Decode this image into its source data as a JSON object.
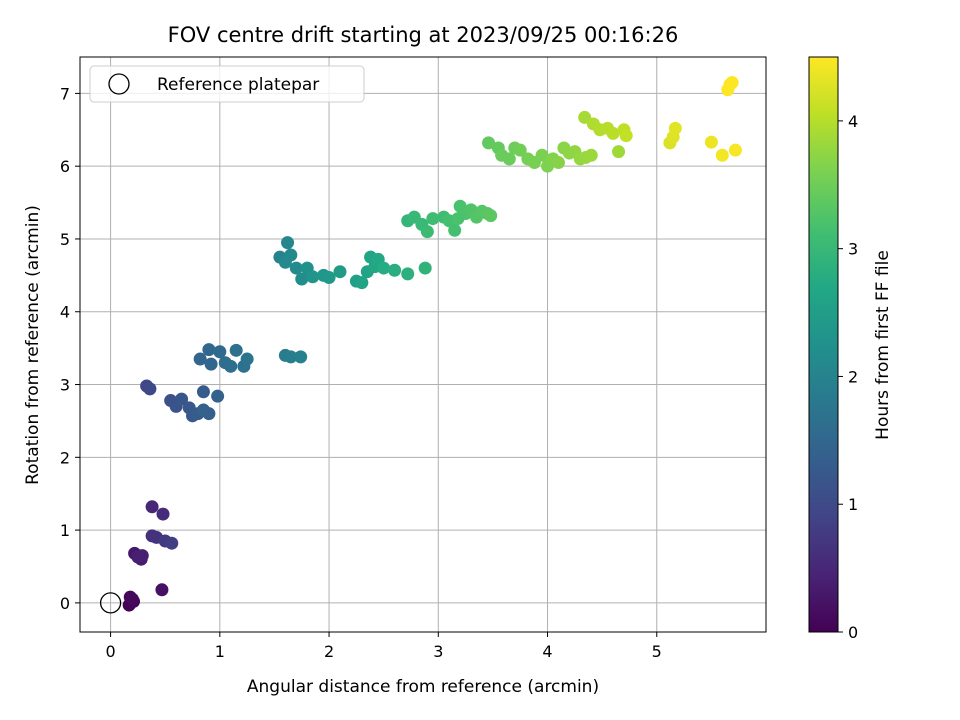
{
  "chart_data": {
    "type": "scatter",
    "title": "FOV centre drift starting at 2023/09/25 00:16:26",
    "xlabel": "Angular distance from reference (arcmin)",
    "ylabel": "Rotation from reference (arcmin)",
    "xlim": [
      -0.28,
      6.0
    ],
    "ylim": [
      -0.4,
      7.5
    ],
    "xticks": [
      0,
      1,
      2,
      3,
      4,
      5
    ],
    "yticks": [
      0,
      1,
      2,
      3,
      4,
      5,
      6,
      7
    ],
    "grid": true,
    "legend": {
      "placement": "upper-left",
      "entries": [
        "Reference platepar"
      ]
    },
    "reference_point": {
      "x": 0,
      "y": 0,
      "marker": "open-circle"
    },
    "colorbar": {
      "label": "Hours from first FF file",
      "colormap": "viridis",
      "range": [
        0,
        4.5
      ],
      "ticks": [
        0,
        1,
        2,
        3,
        4
      ]
    },
    "points": [
      {
        "x": 0.17,
        "y": -0.03,
        "c": 0.02
      },
      {
        "x": 0.21,
        "y": 0.02,
        "c": 0.05
      },
      {
        "x": 0.18,
        "y": 0.08,
        "c": 0.08
      },
      {
        "x": 0.2,
        "y": 0.05,
        "c": 0.1
      },
      {
        "x": 0.47,
        "y": 0.18,
        "c": 0.2
      },
      {
        "x": 0.22,
        "y": 0.68,
        "c": 0.3
      },
      {
        "x": 0.28,
        "y": 0.6,
        "c": 0.35
      },
      {
        "x": 0.29,
        "y": 0.65,
        "c": 0.38
      },
      {
        "x": 0.25,
        "y": 0.63,
        "c": 0.4
      },
      {
        "x": 0.38,
        "y": 1.32,
        "c": 0.5
      },
      {
        "x": 0.48,
        "y": 1.22,
        "c": 0.55
      },
      {
        "x": 0.38,
        "y": 0.92,
        "c": 0.6
      },
      {
        "x": 0.42,
        "y": 0.9,
        "c": 0.65
      },
      {
        "x": 0.5,
        "y": 0.85,
        "c": 0.75
      },
      {
        "x": 0.56,
        "y": 0.82,
        "c": 0.82
      },
      {
        "x": 0.33,
        "y": 2.98,
        "c": 0.95
      },
      {
        "x": 0.36,
        "y": 2.94,
        "c": 1.0
      },
      {
        "x": 0.55,
        "y": 2.78,
        "c": 1.1
      },
      {
        "x": 0.6,
        "y": 2.7,
        "c": 1.15
      },
      {
        "x": 0.65,
        "y": 2.8,
        "c": 1.2
      },
      {
        "x": 0.72,
        "y": 2.68,
        "c": 1.22
      },
      {
        "x": 0.75,
        "y": 2.57,
        "c": 1.25
      },
      {
        "x": 0.8,
        "y": 2.6,
        "c": 1.3
      },
      {
        "x": 0.85,
        "y": 2.9,
        "c": 1.3
      },
      {
        "x": 0.9,
        "y": 2.6,
        "c": 1.35
      },
      {
        "x": 0.98,
        "y": 2.84,
        "c": 1.4
      },
      {
        "x": 0.85,
        "y": 2.65,
        "c": 1.4
      },
      {
        "x": 0.82,
        "y": 3.35,
        "c": 1.45
      },
      {
        "x": 0.9,
        "y": 3.48,
        "c": 1.5
      },
      {
        "x": 1.0,
        "y": 3.45,
        "c": 1.55
      },
      {
        "x": 1.05,
        "y": 3.3,
        "c": 1.6
      },
      {
        "x": 1.1,
        "y": 3.25,
        "c": 1.62
      },
      {
        "x": 1.15,
        "y": 3.47,
        "c": 1.65
      },
      {
        "x": 1.22,
        "y": 3.25,
        "c": 1.7
      },
      {
        "x": 1.25,
        "y": 3.35,
        "c": 1.72
      },
      {
        "x": 0.92,
        "y": 3.28,
        "c": 1.5
      },
      {
        "x": 1.6,
        "y": 3.4,
        "c": 1.85
      },
      {
        "x": 1.65,
        "y": 3.38,
        "c": 1.9
      },
      {
        "x": 1.74,
        "y": 3.38,
        "c": 1.95
      },
      {
        "x": 1.55,
        "y": 4.75,
        "c": 2.0
      },
      {
        "x": 1.62,
        "y": 4.95,
        "c": 2.05
      },
      {
        "x": 1.65,
        "y": 4.78,
        "c": 2.1
      },
      {
        "x": 1.6,
        "y": 4.68,
        "c": 2.12
      },
      {
        "x": 1.7,
        "y": 4.6,
        "c": 2.15
      },
      {
        "x": 1.75,
        "y": 4.45,
        "c": 2.2
      },
      {
        "x": 1.8,
        "y": 4.6,
        "c": 2.25
      },
      {
        "x": 1.85,
        "y": 4.48,
        "c": 2.3
      },
      {
        "x": 1.95,
        "y": 4.5,
        "c": 2.35
      },
      {
        "x": 2.0,
        "y": 4.47,
        "c": 2.4
      },
      {
        "x": 2.1,
        "y": 4.55,
        "c": 2.45
      },
      {
        "x": 2.25,
        "y": 4.42,
        "c": 2.55
      },
      {
        "x": 2.3,
        "y": 4.4,
        "c": 2.58
      },
      {
        "x": 2.35,
        "y": 4.55,
        "c": 2.6
      },
      {
        "x": 2.38,
        "y": 4.75,
        "c": 2.65
      },
      {
        "x": 2.42,
        "y": 4.62,
        "c": 2.68
      },
      {
        "x": 2.45,
        "y": 4.72,
        "c": 2.7
      },
      {
        "x": 2.5,
        "y": 4.6,
        "c": 2.75
      },
      {
        "x": 2.6,
        "y": 4.57,
        "c": 2.8
      },
      {
        "x": 2.72,
        "y": 4.52,
        "c": 2.85
      },
      {
        "x": 2.88,
        "y": 4.6,
        "c": 2.9
      },
      {
        "x": 2.72,
        "y": 5.25,
        "c": 2.95
      },
      {
        "x": 2.78,
        "y": 5.3,
        "c": 3.0
      },
      {
        "x": 2.85,
        "y": 5.2,
        "c": 3.02
      },
      {
        "x": 2.9,
        "y": 5.1,
        "c": 3.05
      },
      {
        "x": 2.95,
        "y": 5.28,
        "c": 3.08
      },
      {
        "x": 3.05,
        "y": 5.3,
        "c": 3.1
      },
      {
        "x": 3.1,
        "y": 5.25,
        "c": 3.15
      },
      {
        "x": 3.15,
        "y": 5.12,
        "c": 3.15
      },
      {
        "x": 3.2,
        "y": 5.45,
        "c": 3.2
      },
      {
        "x": 3.25,
        "y": 5.35,
        "c": 3.22
      },
      {
        "x": 3.3,
        "y": 5.4,
        "c": 3.25
      },
      {
        "x": 3.35,
        "y": 5.3,
        "c": 3.28
      },
      {
        "x": 3.4,
        "y": 5.38,
        "c": 3.3
      },
      {
        "x": 3.45,
        "y": 5.35,
        "c": 3.32
      },
      {
        "x": 3.48,
        "y": 5.32,
        "c": 3.35
      },
      {
        "x": 3.18,
        "y": 5.28,
        "c": 3.2
      },
      {
        "x": 3.46,
        "y": 6.32,
        "c": 3.4
      },
      {
        "x": 3.55,
        "y": 6.25,
        "c": 3.42
      },
      {
        "x": 3.58,
        "y": 6.15,
        "c": 3.45
      },
      {
        "x": 3.65,
        "y": 6.1,
        "c": 3.48
      },
      {
        "x": 3.7,
        "y": 6.25,
        "c": 3.5
      },
      {
        "x": 3.75,
        "y": 6.22,
        "c": 3.52
      },
      {
        "x": 3.82,
        "y": 6.1,
        "c": 3.55
      },
      {
        "x": 3.88,
        "y": 6.05,
        "c": 3.58
      },
      {
        "x": 3.95,
        "y": 6.15,
        "c": 3.6
      },
      {
        "x": 4.0,
        "y": 6.0,
        "c": 3.62
      },
      {
        "x": 4.05,
        "y": 6.1,
        "c": 3.65
      },
      {
        "x": 4.1,
        "y": 6.05,
        "c": 3.68
      },
      {
        "x": 4.15,
        "y": 6.25,
        "c": 3.7
      },
      {
        "x": 4.2,
        "y": 6.18,
        "c": 3.72
      },
      {
        "x": 4.25,
        "y": 6.2,
        "c": 3.75
      },
      {
        "x": 4.3,
        "y": 6.1,
        "c": 3.78
      },
      {
        "x": 4.35,
        "y": 6.12,
        "c": 3.8
      },
      {
        "x": 4.4,
        "y": 6.15,
        "c": 3.82
      },
      {
        "x": 4.65,
        "y": 6.2,
        "c": 3.85
      },
      {
        "x": 4.34,
        "y": 6.67,
        "c": 3.9
      },
      {
        "x": 4.42,
        "y": 6.58,
        "c": 3.95
      },
      {
        "x": 4.48,
        "y": 6.5,
        "c": 3.98
      },
      {
        "x": 4.55,
        "y": 6.52,
        "c": 4.0
      },
      {
        "x": 4.6,
        "y": 6.45,
        "c": 4.02
      },
      {
        "x": 4.7,
        "y": 6.5,
        "c": 4.05
      },
      {
        "x": 4.72,
        "y": 6.42,
        "c": 4.08
      },
      {
        "x": 5.12,
        "y": 6.32,
        "c": 4.25
      },
      {
        "x": 5.15,
        "y": 6.4,
        "c": 4.28
      },
      {
        "x": 5.17,
        "y": 6.52,
        "c": 4.3
      },
      {
        "x": 5.5,
        "y": 6.33,
        "c": 4.38
      },
      {
        "x": 5.6,
        "y": 6.15,
        "c": 4.42
      },
      {
        "x": 5.72,
        "y": 6.22,
        "c": 4.45
      },
      {
        "x": 5.65,
        "y": 7.05,
        "c": 4.5
      },
      {
        "x": 5.67,
        "y": 7.12,
        "c": 4.5
      },
      {
        "x": 5.69,
        "y": 7.15,
        "c": 4.5
      }
    ]
  }
}
